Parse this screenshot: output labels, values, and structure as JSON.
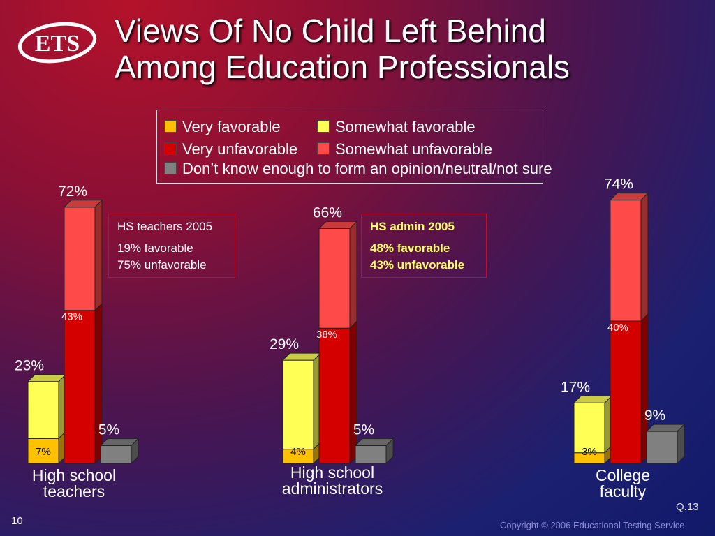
{
  "slide": {
    "title_lines": [
      "Views Of No Child Left Behind",
      "Among Education Professionals"
    ],
    "logo_text": "ETS",
    "slide_number": "10",
    "question_ref": "Q.13",
    "copyright": "Copyright © 2006 Educational Testing Service"
  },
  "colors": {
    "very_favorable": "#ffc000",
    "somewhat_favorable": "#ffff55",
    "very_unfavorable": "#d40000",
    "somewhat_unfavorable": "#ff4a4a",
    "dont_know": "#808080"
  },
  "legend": {
    "very_favorable": "Very favorable",
    "somewhat_favorable": "Somewhat favorable",
    "very_unfavorable": "Very unfavorable",
    "somewhat_unfavorable": "Somewhat unfavorable",
    "dont_know": "Don’t know enough to form an opinion/neutral/not sure"
  },
  "callouts": {
    "hs_teachers": [
      "HS teachers 2005",
      "19% favorable",
      "75% unfavorable"
    ],
    "hs_admin": [
      "HS admin 2005",
      "48% favorable",
      "43% unfavorable"
    ]
  },
  "chart_data": {
    "type": "bar",
    "stacked": true,
    "categories": [
      [
        "High school",
        "teachers"
      ],
      [
        "High school",
        "administrators"
      ],
      [
        "College",
        "faculty"
      ]
    ],
    "groups": [
      {
        "favorable": {
          "very": 7,
          "somewhat": 16,
          "total": 23
        },
        "unfavorable": {
          "very": 43,
          "somewhat": 29,
          "total": 72
        },
        "dont_know": 5
      },
      {
        "favorable": {
          "very": 4,
          "somewhat": 25,
          "total": 29
        },
        "unfavorable": {
          "very": 38,
          "somewhat": 28,
          "total": 66
        },
        "dont_know": 5
      },
      {
        "favorable": {
          "very": 3,
          "somewhat": 14,
          "total": 17
        },
        "unfavorable": {
          "very": 40,
          "somewhat": 34,
          "total": 74
        },
        "dont_know": 9
      }
    ],
    "value_labels": {
      "favorable_total": [
        "23%",
        "29%",
        "17%"
      ],
      "favorable_very": [
        "7%",
        "4%",
        "3%"
      ],
      "unfavorable_total": [
        "72%",
        "66%",
        "74%"
      ],
      "unfavorable_very": [
        "43%",
        "38%",
        "40%"
      ],
      "dont_know": [
        "5%",
        "5%",
        "9%"
      ]
    },
    "ylim": [
      0,
      80
    ],
    "grid": false,
    "legend_position": "top"
  }
}
